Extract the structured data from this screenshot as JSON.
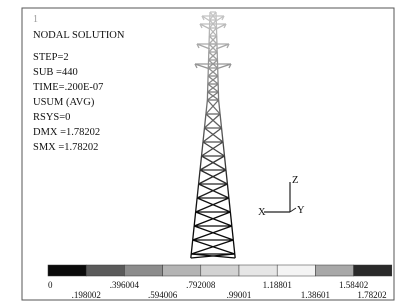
{
  "window_number": "1",
  "info": [
    "NODAL SOLUTION",
    "STEP=2",
    "SUB =440",
    "TIME=.200E-07",
    "USUM      (AVG)",
    "RSYS=0",
    "DMX =1.78202",
    "SMX =1.78202"
  ],
  "triad": {
    "z": "Z",
    "x": "X",
    "y": "Y"
  },
  "legend": {
    "colors": [
      "#0a0a0a",
      "#5a5a5a",
      "#8c8c8c",
      "#b4b4b4",
      "#d2d2d2",
      "#e6e6e6",
      "#f4f4f4",
      "#a8a8a8",
      "#2a2a2a"
    ],
    "labels": [
      "0",
      ".198002",
      ".396004",
      ".594006",
      ".792008",
      ".99001",
      "1.18801",
      "1.38601",
      "1.58402",
      "1.78202"
    ]
  }
}
